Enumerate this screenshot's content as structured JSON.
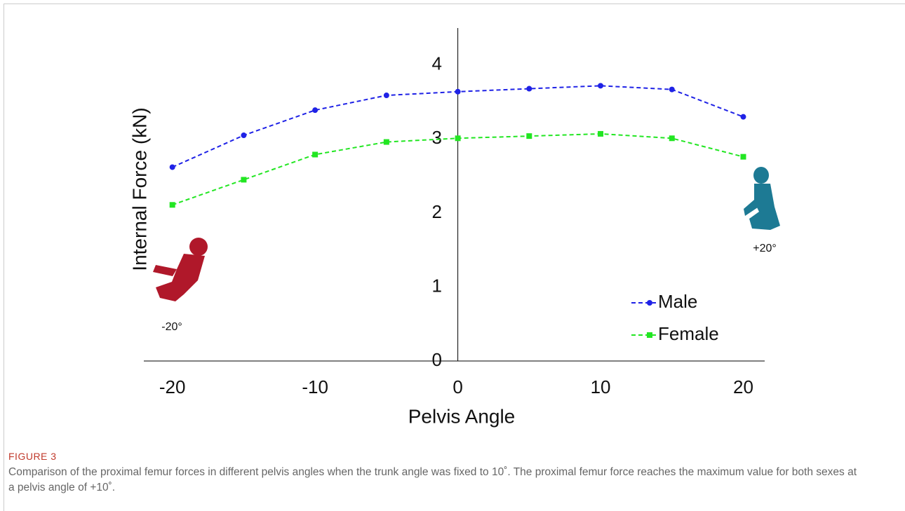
{
  "chart_data": {
    "type": "line",
    "xlabel": "Pelvis Angle",
    "ylabel": "Internal Force (kN)",
    "x": [
      -20,
      -15,
      -10,
      -5,
      0,
      5,
      10,
      15,
      20
    ],
    "series": [
      {
        "name": "Male",
        "color": "#1f22e6",
        "marker": "circle",
        "values": [
          2.62,
          3.05,
          3.39,
          3.59,
          3.64,
          3.68,
          3.72,
          3.67,
          3.3
        ]
      },
      {
        "name": "Female",
        "color": "#22e622",
        "marker": "square",
        "values": [
          2.11,
          2.45,
          2.79,
          2.96,
          3.01,
          3.04,
          3.07,
          3.01,
          2.76
        ]
      }
    ],
    "xlim": [
      -22,
      21.5
    ],
    "ylim": [
      0,
      4.5
    ],
    "xticks": [
      -20,
      -10,
      0,
      10,
      20
    ],
    "yticks": [
      0,
      1,
      2,
      3,
      4
    ],
    "annotations": [
      "-20°",
      "+20°"
    ]
  },
  "figure": {
    "label": "FIGURE 3",
    "caption": "Comparison of the proximal femur forces in different pelvis angles when the trunk angle was fixed to 10˚. The proximal femur force reaches the maximum value for both sexes at a pelvis angle of +10˚."
  }
}
